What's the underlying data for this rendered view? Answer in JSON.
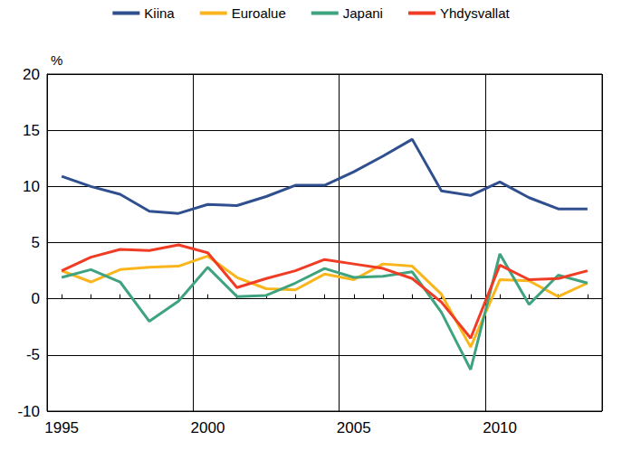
{
  "chart_data": {
    "type": "line",
    "y_label": "%",
    "categories": [
      "1995",
      null,
      null,
      null,
      null,
      "2000",
      null,
      null,
      null,
      null,
      "2005",
      null,
      null,
      null,
      null,
      "2010",
      null,
      null,
      null
    ],
    "series": [
      {
        "name": "Kiina",
        "color": "#2f4f8f",
        "values": [
          10.9,
          10.0,
          9.3,
          7.8,
          7.6,
          8.4,
          8.3,
          9.1,
          10.1,
          10.1,
          11.3,
          12.7,
          14.2,
          9.6,
          9.2,
          10.4,
          9.0,
          8.0,
          8.0
        ]
      },
      {
        "name": "Euroalue",
        "color": "#fbb51c",
        "values": [
          2.5,
          1.5,
          2.6,
          2.8,
          2.9,
          3.8,
          1.9,
          0.9,
          0.8,
          2.2,
          1.7,
          3.1,
          2.9,
          0.4,
          -4.3,
          1.7,
          1.6,
          0.2,
          1.4
        ]
      },
      {
        "name": "Japani",
        "color": "#3fa37f",
        "values": [
          1.9,
          2.6,
          1.5,
          -2.0,
          -0.2,
          2.8,
          0.2,
          0.3,
          1.4,
          2.7,
          1.9,
          2.0,
          2.4,
          -1.2,
          -6.3,
          4.0,
          -0.5,
          2.1,
          1.4
        ]
      },
      {
        "name": "Yhdysvallat",
        "color": "#f03c24",
        "values": [
          2.5,
          3.7,
          4.4,
          4.3,
          4.8,
          4.1,
          1.0,
          1.8,
          2.5,
          3.5,
          3.1,
          2.7,
          1.8,
          -0.3,
          -3.5,
          3.0,
          1.7,
          1.8,
          2.5
        ]
      }
    ],
    "ylim": [
      -10,
      20
    ],
    "yticks": [
      -10,
      -5,
      0,
      5,
      10,
      15,
      20
    ],
    "grid": true,
    "legend": "top"
  }
}
